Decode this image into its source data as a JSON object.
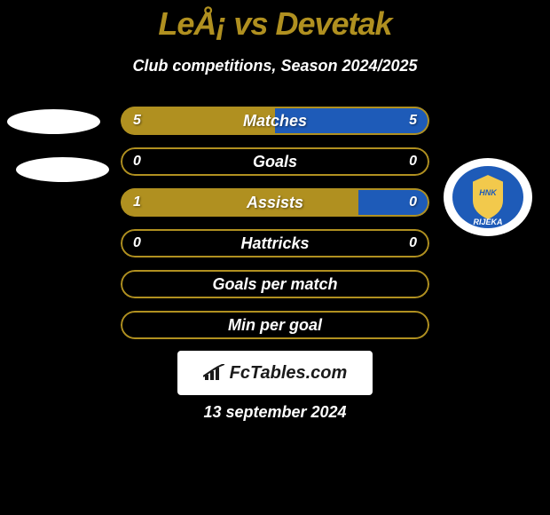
{
  "title": "LeÅ¡ vs Devetak",
  "subtitle": "Club competitions, Season 2024/2025",
  "date": "13 september 2024",
  "footer_brand": "FcTables.com",
  "colors": {
    "background": "#000000",
    "accent_olive": "#b09020",
    "accent_blue": "#1e5bb8",
    "text_white": "#ffffff"
  },
  "logo_right": {
    "text_top": "HNK",
    "text_bottom": "RIJEKA",
    "ring_color": "#1e5bb8",
    "inner_color": "#f2c94c"
  },
  "bars": [
    {
      "label": "Matches",
      "left_val": "5",
      "right_val": "5",
      "left_pct": 50,
      "right_pct": 50,
      "left_color": "#b09020",
      "right_color": "#1e5bb8",
      "border_color": "#b09020"
    },
    {
      "label": "Goals",
      "left_val": "0",
      "right_val": "0",
      "left_pct": 0,
      "right_pct": 0,
      "left_color": "#b09020",
      "right_color": "#1e5bb8",
      "border_color": "#b09020"
    },
    {
      "label": "Assists",
      "left_val": "1",
      "right_val": "0",
      "left_pct": 77,
      "right_pct": 23,
      "left_color": "#b09020",
      "right_color": "#1e5bb8",
      "border_color": "#b09020"
    },
    {
      "label": "Hattricks",
      "left_val": "0",
      "right_val": "0",
      "left_pct": 0,
      "right_pct": 0,
      "left_color": "#b09020",
      "right_color": "#1e5bb8",
      "border_color": "#b09020"
    },
    {
      "label": "Goals per match",
      "left_val": "",
      "right_val": "",
      "left_pct": 0,
      "right_pct": 0,
      "left_color": "#b09020",
      "right_color": "#1e5bb8",
      "border_color": "#b09020"
    },
    {
      "label": "Min per goal",
      "left_val": "",
      "right_val": "",
      "left_pct": 0,
      "right_pct": 0,
      "left_color": "#b09020",
      "right_color": "#1e5bb8",
      "border_color": "#b09020"
    }
  ]
}
